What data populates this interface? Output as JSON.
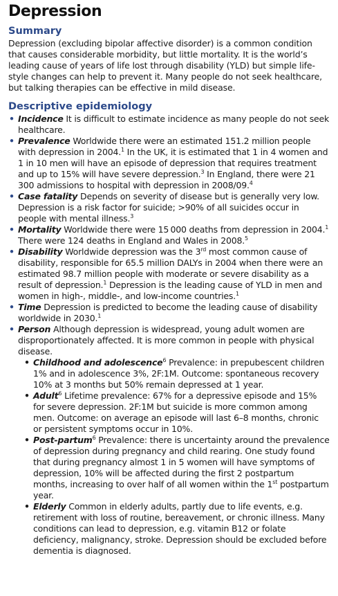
{
  "title": "Depression",
  "summary": {
    "heading": "Summary",
    "text": "Depression (excluding bipolar affective disorder) is a common condition that causes considerable morbidity, but little mortality. It is the world’s leading cause of years of life lost through disability (YLD) but simple life-style changes can help to prevent it. Many people do not seek healthcare, but talking therapies can be effective in mild disease."
  },
  "epidemiology": {
    "heading": "Descriptive epidemiology",
    "incidence": {
      "term": "Incidence",
      "text": " It is difficult to estimate incidence as many people do not seek healthcare."
    },
    "prevalence": {
      "term": "Prevalence",
      "t1": " Worldwide there were an estimated 151.2 million people with depression in 2004.",
      "r1": "1",
      "t2": " In the UK, it is estimated that 1 in 4 women and 1 in 10 men will have an episode of depression that requires treatment and up to 15% will have severe depression.",
      "r2": "3",
      "t3": " In England, there were 21 300 admissions to hospital with depression in 2008/09.",
      "r3": "4"
    },
    "case_fatality": {
      "term": "Case fatality",
      "t1": " Depends on severity of disease but is generally very low. Depression is a risk factor for suicide; >90% of all suicides occur in people with mental illness.",
      "r1": "3"
    },
    "mortality": {
      "term": "Mortality",
      "t1": " Worldwide there were 15 000 deaths from depression in 2004.",
      "r1": "1",
      "t2": " There were 124 deaths in England and Wales in 2008.",
      "r2": "5"
    },
    "disability": {
      "term": "Disability",
      "t1": " Worldwide depression was the 3",
      "ord": "rd",
      "t2": " most common cause of disability, responsible for 65.5 million DALYs in 2004 when there were an estimated 98.7 million people with moderate or severe disability as a result of depression.",
      "r1": "1",
      "t3": " Depression is the leading cause of YLD in men and women in high-, middle-, and low-income countries.",
      "r2": "1"
    },
    "time": {
      "term": "Time",
      "t1": " Depression is predicted to become the leading cause of disability worldwide in 2030.",
      "r1": "1"
    },
    "person": {
      "term": "Person",
      "t1": " Although depression is widespread, young adult women are disproportionately affected. It is more common in people with physical disease.",
      "childhood": {
        "term": "Childhood and adolescence",
        "ref": "6",
        "text": " Prevalence: in prepubescent children 1% and in adolescence 3%, 2F:1M. Outcome: spontaneous recovery 10% at 3 months but 50% remain depressed at 1 year."
      },
      "adult": {
        "term": "Adult",
        "ref": "6",
        "text": " Lifetime prevalence: 67% for a depressive episode and 15% for severe depression. 2F:1M but suicide is more common among men. Outcome: on average an episode will last 6–8 months, chronic or persistent symptoms occur in 10%."
      },
      "postpartum": {
        "term": "Post-partum",
        "ref": "6",
        "t1": " Prevalence: there is uncertainty around the prevalence of depression during pregnancy and child rearing. One study found that during pregnancy almost 1 in 5 women will have symptoms of depression, 10% will be affected during the first 2 postpartum months, increasing to over half of all women within the 1",
        "ord": "st",
        "t2": " postpartum year."
      },
      "elderly": {
        "term": "Elderly",
        "text": " Common in elderly adults, partly due to life events, e.g. retirement with loss of routine, bereavement, or chronic illness. Many conditions can lead to depression, e.g. vitamin B12 or folate deficiency, malignancy, stroke. Depression should be excluded before dementia is diagnosed."
      }
    }
  }
}
